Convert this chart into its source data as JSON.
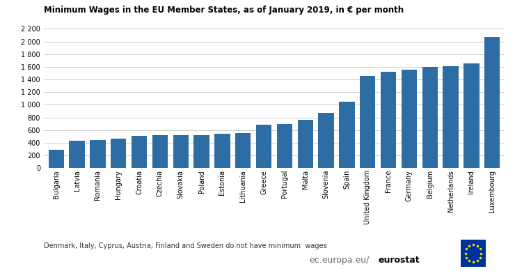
{
  "title": "Minimum Wages in the EU Member States, as of January 2019, in € per month",
  "countries": [
    "Bulgaria",
    "Latvia",
    "Romania",
    "Hungary",
    "Croatia",
    "Czechia",
    "Slovakia",
    "Poland",
    "Estonia",
    "Lithuania",
    "Greece",
    "Portugal",
    "Malta",
    "Slovenia",
    "Spain",
    "United Kingdom",
    "France",
    "Germany",
    "Belgium",
    "Netherlands",
    "Ireland",
    "Luxembourg"
  ],
  "values": [
    286,
    430,
    446,
    464,
    506,
    519,
    520,
    523,
    540,
    555,
    683,
    700,
    762,
    877,
    1050,
    1461,
    1521,
    1557,
    1594,
    1616,
    1656,
    2071
  ],
  "bar_color": "#2e6da4",
  "footnote": "Denmark, Italy, Cyprus, Austria, Finland and Sweden do not have minimum  wages",
  "ylim": [
    0,
    2400
  ],
  "yticks": [
    0,
    200,
    400,
    600,
    800,
    1000,
    1200,
    1400,
    1600,
    1800,
    2000,
    2200
  ],
  "background_color": "#ffffff",
  "grid_color": "#cccccc",
  "title_fontsize": 8.5,
  "tick_fontsize": 7.0,
  "footnote_fontsize": 7.0,
  "watermark_fontsize": 9.0
}
